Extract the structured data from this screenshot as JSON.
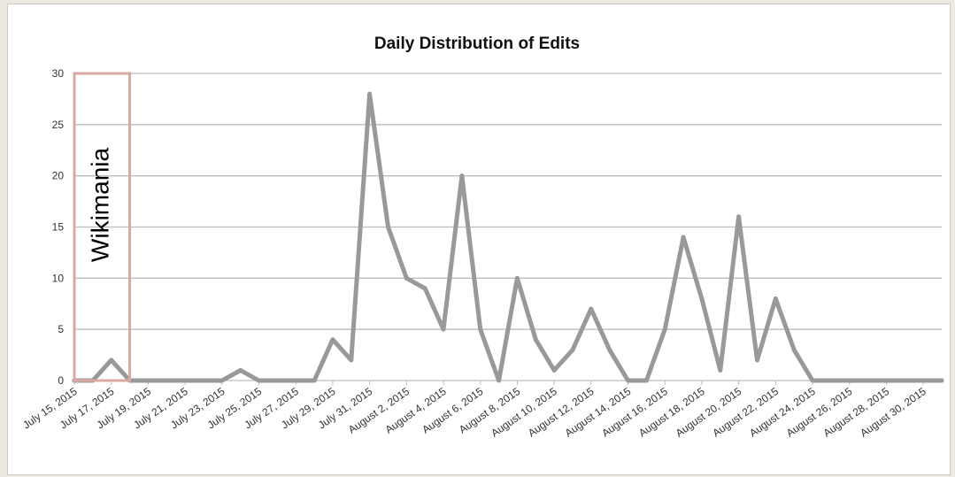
{
  "chart_data": {
    "type": "line",
    "title": "Daily Distribution of Edits",
    "xlabel": "",
    "ylabel": "",
    "ylim": [
      0,
      30
    ],
    "yticks": [
      0,
      5,
      10,
      15,
      20,
      25,
      30
    ],
    "grid": true,
    "x_tick_labels": [
      "July 15, 2015",
      "July 17, 2015",
      "July 19, 2015",
      "July 21, 2015",
      "July 23, 2015",
      "July 25, 2015",
      "July 27, 2015",
      "July 29, 2015",
      "July 31, 2015",
      "August 2, 2015",
      "August 4, 2015",
      "August 6, 2015",
      "August 8, 2015",
      "August 10, 2015",
      "August 12, 2015",
      "August 14, 2015",
      "August 16, 2015",
      "August 18, 2015",
      "August 20, 2015",
      "August 22, 2015",
      "August 24, 2015",
      "August 26, 2015",
      "August 28, 2015",
      "August 30, 2015"
    ],
    "x_range": [
      "2015-07-15",
      "2015-08-31"
    ],
    "series": [
      {
        "name": "",
        "color": "#999999",
        "x": [
          "2015-07-15",
          "2015-07-16",
          "2015-07-17",
          "2015-07-18",
          "2015-07-19",
          "2015-07-20",
          "2015-07-21",
          "2015-07-22",
          "2015-07-23",
          "2015-07-24",
          "2015-07-25",
          "2015-07-26",
          "2015-07-27",
          "2015-07-28",
          "2015-07-29",
          "2015-07-30",
          "2015-07-31",
          "2015-08-01",
          "2015-08-02",
          "2015-08-03",
          "2015-08-04",
          "2015-08-05",
          "2015-08-06",
          "2015-08-07",
          "2015-08-08",
          "2015-08-09",
          "2015-08-10",
          "2015-08-11",
          "2015-08-12",
          "2015-08-13",
          "2015-08-14",
          "2015-08-15",
          "2015-08-16",
          "2015-08-17",
          "2015-08-18",
          "2015-08-19",
          "2015-08-20",
          "2015-08-21",
          "2015-08-22",
          "2015-08-23",
          "2015-08-24",
          "2015-08-25",
          "2015-08-26",
          "2015-08-27",
          "2015-08-28",
          "2015-08-29",
          "2015-08-30",
          "2015-08-31"
        ],
        "values": [
          0,
          0,
          2,
          0,
          0,
          0,
          0,
          0,
          0,
          1,
          0,
          0,
          0,
          0,
          4,
          2,
          28,
          15,
          10,
          9,
          5,
          20,
          5,
          0,
          10,
          4,
          1,
          3,
          7,
          3,
          0,
          0,
          5,
          14,
          8,
          1,
          16,
          2,
          8,
          3,
          0,
          0,
          0,
          0,
          0,
          0,
          0,
          0
        ]
      }
    ],
    "annotations": [
      {
        "label": "Wikimania",
        "x_start": "2015-07-15",
        "x_end": "2015-07-18",
        "color": "#d9aaa2"
      }
    ]
  }
}
